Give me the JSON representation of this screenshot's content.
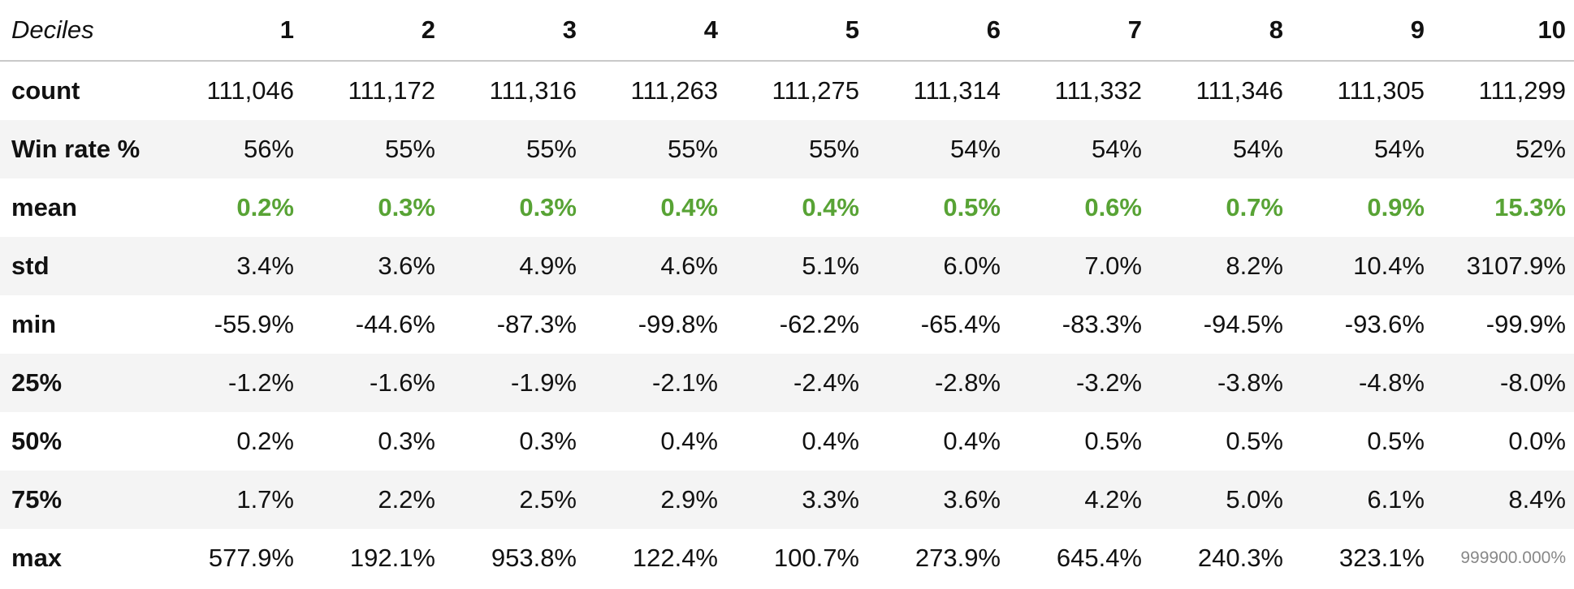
{
  "chart_data": {
    "type": "table",
    "corner_label": "Deciles",
    "columns": [
      "1",
      "2",
      "3",
      "4",
      "5",
      "6",
      "7",
      "8",
      "9",
      "10"
    ],
    "highlight_color": "#58a335",
    "rows": [
      {
        "label": "count",
        "highlight": false,
        "cells": [
          "111,046",
          "111,172",
          "111,316",
          "111,263",
          "111,275",
          "111,314",
          "111,332",
          "111,346",
          "111,305",
          "111,299"
        ]
      },
      {
        "label": "Win rate %",
        "highlight": false,
        "cells": [
          "56%",
          "55%",
          "55%",
          "55%",
          "55%",
          "54%",
          "54%",
          "54%",
          "54%",
          "52%"
        ]
      },
      {
        "label": "mean",
        "highlight": true,
        "cells": [
          "0.2%",
          "0.3%",
          "0.3%",
          "0.4%",
          "0.4%",
          "0.5%",
          "0.6%",
          "0.7%",
          "0.9%",
          "15.3%"
        ]
      },
      {
        "label": "std",
        "highlight": false,
        "cells": [
          "3.4%",
          "3.6%",
          "4.9%",
          "4.6%",
          "5.1%",
          "6.0%",
          "7.0%",
          "8.2%",
          "10.4%",
          "3107.9%"
        ]
      },
      {
        "label": "min",
        "highlight": false,
        "cells": [
          "-55.9%",
          "-44.6%",
          "-87.3%",
          "-99.8%",
          "-62.2%",
          "-65.4%",
          "-83.3%",
          "-94.5%",
          "-93.6%",
          "-99.9%"
        ]
      },
      {
        "label": "25%",
        "highlight": false,
        "cells": [
          "-1.2%",
          "-1.6%",
          "-1.9%",
          "-2.1%",
          "-2.4%",
          "-2.8%",
          "-3.2%",
          "-3.8%",
          "-4.8%",
          "-8.0%"
        ]
      },
      {
        "label": "50%",
        "highlight": false,
        "cells": [
          "0.2%",
          "0.3%",
          "0.3%",
          "0.4%",
          "0.4%",
          "0.4%",
          "0.5%",
          "0.5%",
          "0.5%",
          "0.0%"
        ]
      },
      {
        "label": "75%",
        "highlight": false,
        "cells": [
          "1.7%",
          "2.2%",
          "2.5%",
          "2.9%",
          "3.3%",
          "3.6%",
          "4.2%",
          "5.0%",
          "6.1%",
          "8.4%"
        ]
      },
      {
        "label": "max",
        "highlight": false,
        "cells": [
          "577.9%",
          "192.1%",
          "953.8%",
          "122.4%",
          "100.7%",
          "273.9%",
          "645.4%",
          "240.3%",
          "323.1%",
          "999900.000%"
        ]
      }
    ]
  }
}
